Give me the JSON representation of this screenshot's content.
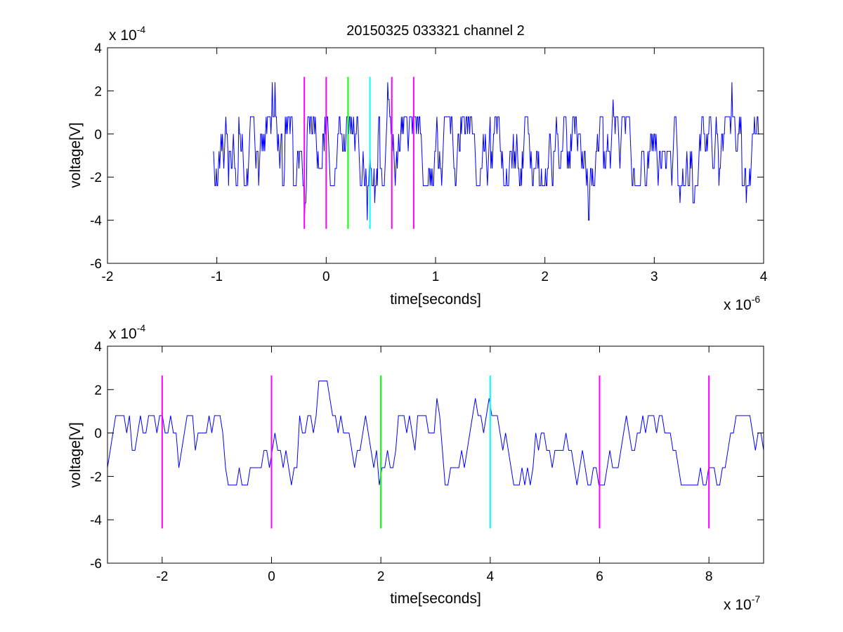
{
  "title": "20150325 033321 channel 2",
  "colors": {
    "signal": "#0000ff",
    "marker_magenta": "#ff00ff",
    "marker_green": "#00ff00",
    "marker_cyan": "#00ffff",
    "axes": "#000000",
    "background": "#ffffff"
  },
  "chart_data": [
    {
      "type": "line",
      "title": "20150325 033321 channel 2",
      "xlabel": "time[seconds]",
      "ylabel": "voltage[V]",
      "x_multiplier": {
        "base": "x 10",
        "exponent": "-6"
      },
      "y_multiplier": {
        "base": "x 10",
        "exponent": "-4"
      },
      "xlim": [
        -2,
        4
      ],
      "ylim": [
        -6,
        4
      ],
      "xticks": [
        "-2",
        "-1",
        "0",
        "1",
        "2",
        "3",
        "4"
      ],
      "yticks": [
        "-6",
        "-4",
        "-2",
        "0",
        "2",
        "4"
      ],
      "grid": false,
      "signal": {
        "x_range": [
          -1.03,
          3.96
        ],
        "baseline": -0.8,
        "levels": [
          -4.0,
          -3.2,
          -2.4,
          -1.6,
          -0.8,
          0.0,
          0.8,
          1.6,
          2.4
        ],
        "points": 800
      },
      "markers": [
        {
          "x": -0.2,
          "color": "magenta"
        },
        {
          "x": 0.0,
          "color": "magenta"
        },
        {
          "x": 0.2,
          "color": "green"
        },
        {
          "x": 0.4,
          "color": "cyan"
        },
        {
          "x": 0.6,
          "color": "magenta"
        },
        {
          "x": 0.8,
          "color": "magenta"
        }
      ],
      "marker_range": [
        -4.4,
        2.65
      ]
    },
    {
      "type": "line",
      "xlabel": "time[seconds]",
      "ylabel": "voltage[V]",
      "x_multiplier": {
        "base": "x 10",
        "exponent": "-7"
      },
      "y_multiplier": {
        "base": "x 10",
        "exponent": "-4"
      },
      "xlim": [
        -3,
        9
      ],
      "ylim": [
        -6,
        4
      ],
      "xticks": [
        "-2",
        "0",
        "2",
        "4",
        "6",
        "8"
      ],
      "yticks": [
        "-6",
        "-4",
        "-2",
        "0",
        "2",
        "4"
      ],
      "grid": false,
      "signal": {
        "x_range": [
          -3,
          9
        ],
        "baseline": -0.8,
        "levels": [
          -4.0,
          -3.2,
          -2.4,
          -1.6,
          -0.8,
          0.0,
          0.8,
          1.6,
          2.4
        ],
        "points": 240
      },
      "markers": [
        {
          "x": -2,
          "color": "magenta"
        },
        {
          "x": 0,
          "color": "magenta"
        },
        {
          "x": 2,
          "color": "green"
        },
        {
          "x": 4,
          "color": "cyan"
        },
        {
          "x": 6,
          "color": "magenta"
        },
        {
          "x": 8,
          "color": "magenta"
        }
      ],
      "marker_range": [
        -4.4,
        2.65
      ]
    }
  ]
}
